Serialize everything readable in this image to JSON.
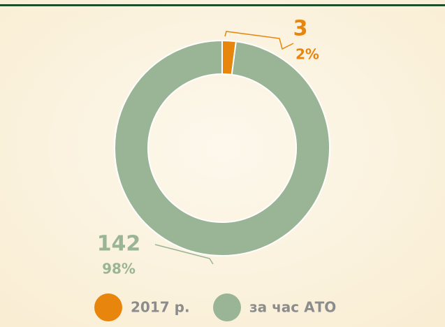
{
  "chart_data": {
    "type": "pie",
    "donut": true,
    "categories": [
      "2017 р.",
      "за час АТО"
    ],
    "values": [
      3,
      142
    ],
    "percent_values": [
      2,
      98
    ],
    "percent_labels": [
      "2%",
      "98%"
    ],
    "colors": [
      "#e8850c",
      "#9ab596"
    ],
    "legend": "bottom"
  }
}
